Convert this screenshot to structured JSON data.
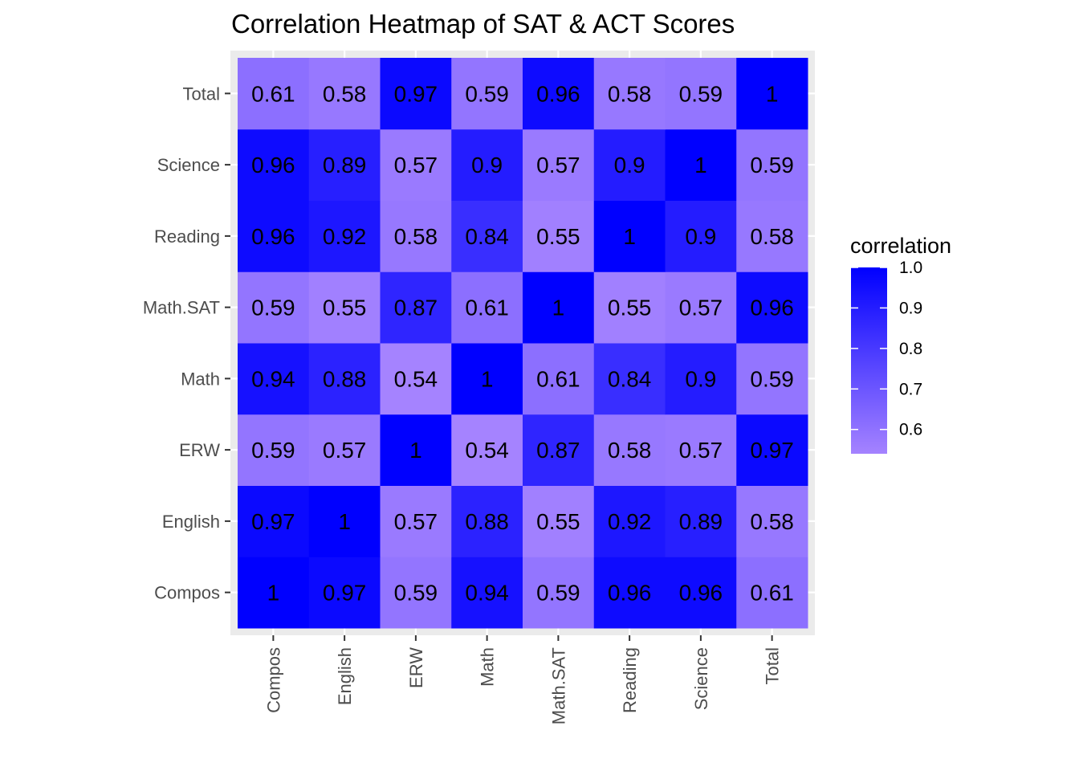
{
  "chart_data": {
    "type": "heatmap",
    "title": "Correlation Heatmap of SAT & ACT Scores",
    "xlabel": "",
    "ylabel": "",
    "x_categories": [
      "Compos",
      "English",
      "ERW",
      "Math",
      "Math.SAT",
      "Reading",
      "Science",
      "Total"
    ],
    "y_categories": [
      "Compos",
      "English",
      "ERW",
      "Math",
      "Math.SAT",
      "Reading",
      "Science",
      "Total"
    ],
    "matrix": [
      [
        1,
        0.97,
        0.59,
        0.94,
        0.59,
        0.96,
        0.96,
        0.61
      ],
      [
        0.97,
        1,
        0.57,
        0.88,
        0.55,
        0.92,
        0.89,
        0.58
      ],
      [
        0.59,
        0.57,
        1,
        0.54,
        0.87,
        0.58,
        0.57,
        0.97
      ],
      [
        0.94,
        0.88,
        0.54,
        1,
        0.61,
        0.84,
        0.9,
        0.59
      ],
      [
        0.59,
        0.55,
        0.87,
        0.61,
        1,
        0.55,
        0.57,
        0.96
      ],
      [
        0.96,
        0.92,
        0.58,
        0.84,
        0.55,
        1,
        0.9,
        0.58
      ],
      [
        0.96,
        0.89,
        0.57,
        0.9,
        0.57,
        0.9,
        1,
        0.59
      ],
      [
        0.61,
        0.58,
        0.97,
        0.59,
        0.96,
        0.58,
        0.59,
        1
      ]
    ],
    "legend": {
      "title": "correlation",
      "position": "right",
      "ticks": [
        1.0,
        0.9,
        0.8,
        0.7,
        0.6
      ],
      "tick_labels": [
        "1.0",
        "0.9",
        "0.8",
        "0.7",
        "0.6"
      ],
      "range": [
        0.54,
        1.0
      ]
    },
    "colors": {
      "low": "#a583ff",
      "high": "#0000ff",
      "panel_background": "#ebebeb",
      "grid": "#ffffff"
    },
    "grid": true
  }
}
